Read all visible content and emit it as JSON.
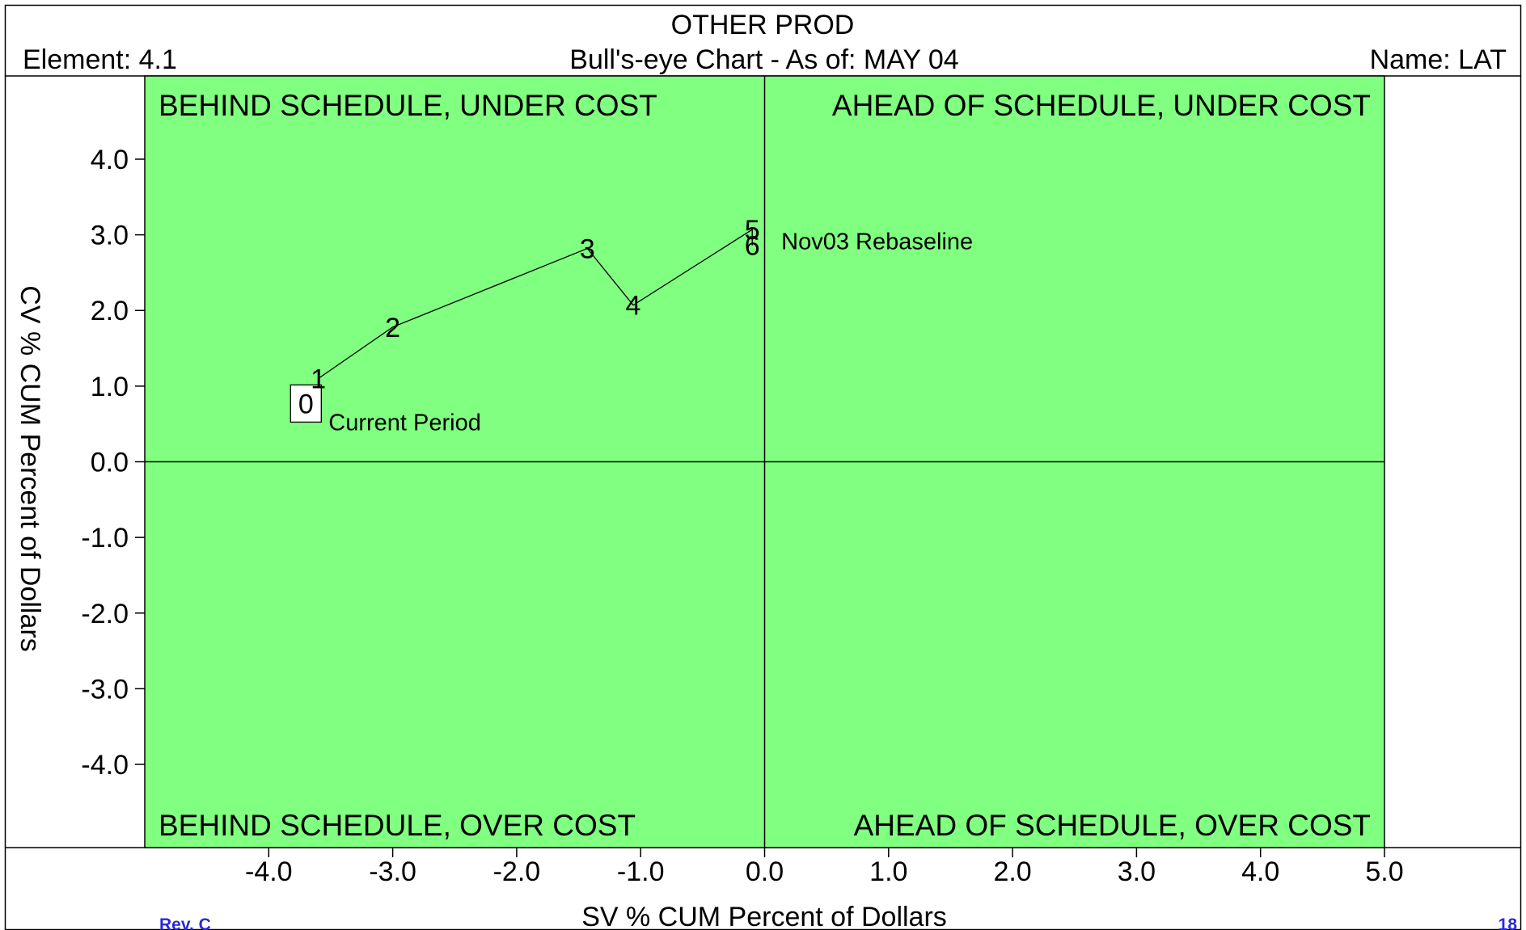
{
  "header": {
    "title": "OTHER PROD",
    "subtitle": "Bull's-eye Chart - As of: MAY 04",
    "element": "Element: 4.1",
    "name": "Name: LAT"
  },
  "footer": {
    "revision": "Rev. C",
    "page_number": "18"
  },
  "colors": {
    "plot_background": "#80ff80",
    "line": "#000000",
    "footer_text": "#2b2bd6"
  },
  "chart_data": {
    "type": "line",
    "title": "OTHER PROD",
    "subtitle": "Bull's-eye Chart - As of: MAY 04",
    "xlabel": "SV % CUM Percent of Dollars",
    "ylabel": "CV % CUM Percent of Dollars",
    "xlim": [
      -5.0,
      5.0
    ],
    "ylim": [
      -5.1,
      5.1
    ],
    "x_ticks": [
      -4.0,
      -3.0,
      -2.0,
      -1.0,
      0.0,
      1.0,
      2.0,
      3.0,
      4.0,
      5.0
    ],
    "x_tick_labels": [
      "-4.0",
      "-3.0",
      "-2.0",
      "-1.0",
      "0.0",
      "1.0",
      "2.0",
      "3.0",
      "4.0",
      "5.0"
    ],
    "y_ticks": [
      4.0,
      3.0,
      2.0,
      1.0,
      0.0,
      -1.0,
      -2.0,
      -3.0,
      -4.0
    ],
    "y_tick_labels": [
      "4.0",
      "3.0",
      "2.0",
      "1.0",
      "0.0",
      "-1.0",
      "-2.0",
      "-3.0",
      "-4.0"
    ],
    "grid": false,
    "quadrants": {
      "top_left": "BEHIND SCHEDULE, UNDER COST",
      "top_right": "AHEAD OF SCHEDULE, UNDER COST",
      "bottom_left": "BEHIND SCHEDULE, OVER COST",
      "bottom_right": "AHEAD OF SCHEDULE, OVER COST"
    },
    "points": [
      {
        "label": "0",
        "x": -3.7,
        "y": 0.77
      },
      {
        "label": "1",
        "x": -3.6,
        "y": 1.1
      },
      {
        "label": "2",
        "x": -3.0,
        "y": 1.78
      },
      {
        "label": "3",
        "x": -1.43,
        "y": 2.82
      },
      {
        "label": "4",
        "x": -1.06,
        "y": 2.07
      },
      {
        "label": "5",
        "x": -0.1,
        "y": 3.07
      },
      {
        "label": "6",
        "x": -0.1,
        "y": 2.86
      }
    ],
    "annotations": [
      {
        "text": "Current Period",
        "point": "0"
      },
      {
        "text": "Nov03 Rebaseline",
        "point": "6"
      }
    ]
  }
}
